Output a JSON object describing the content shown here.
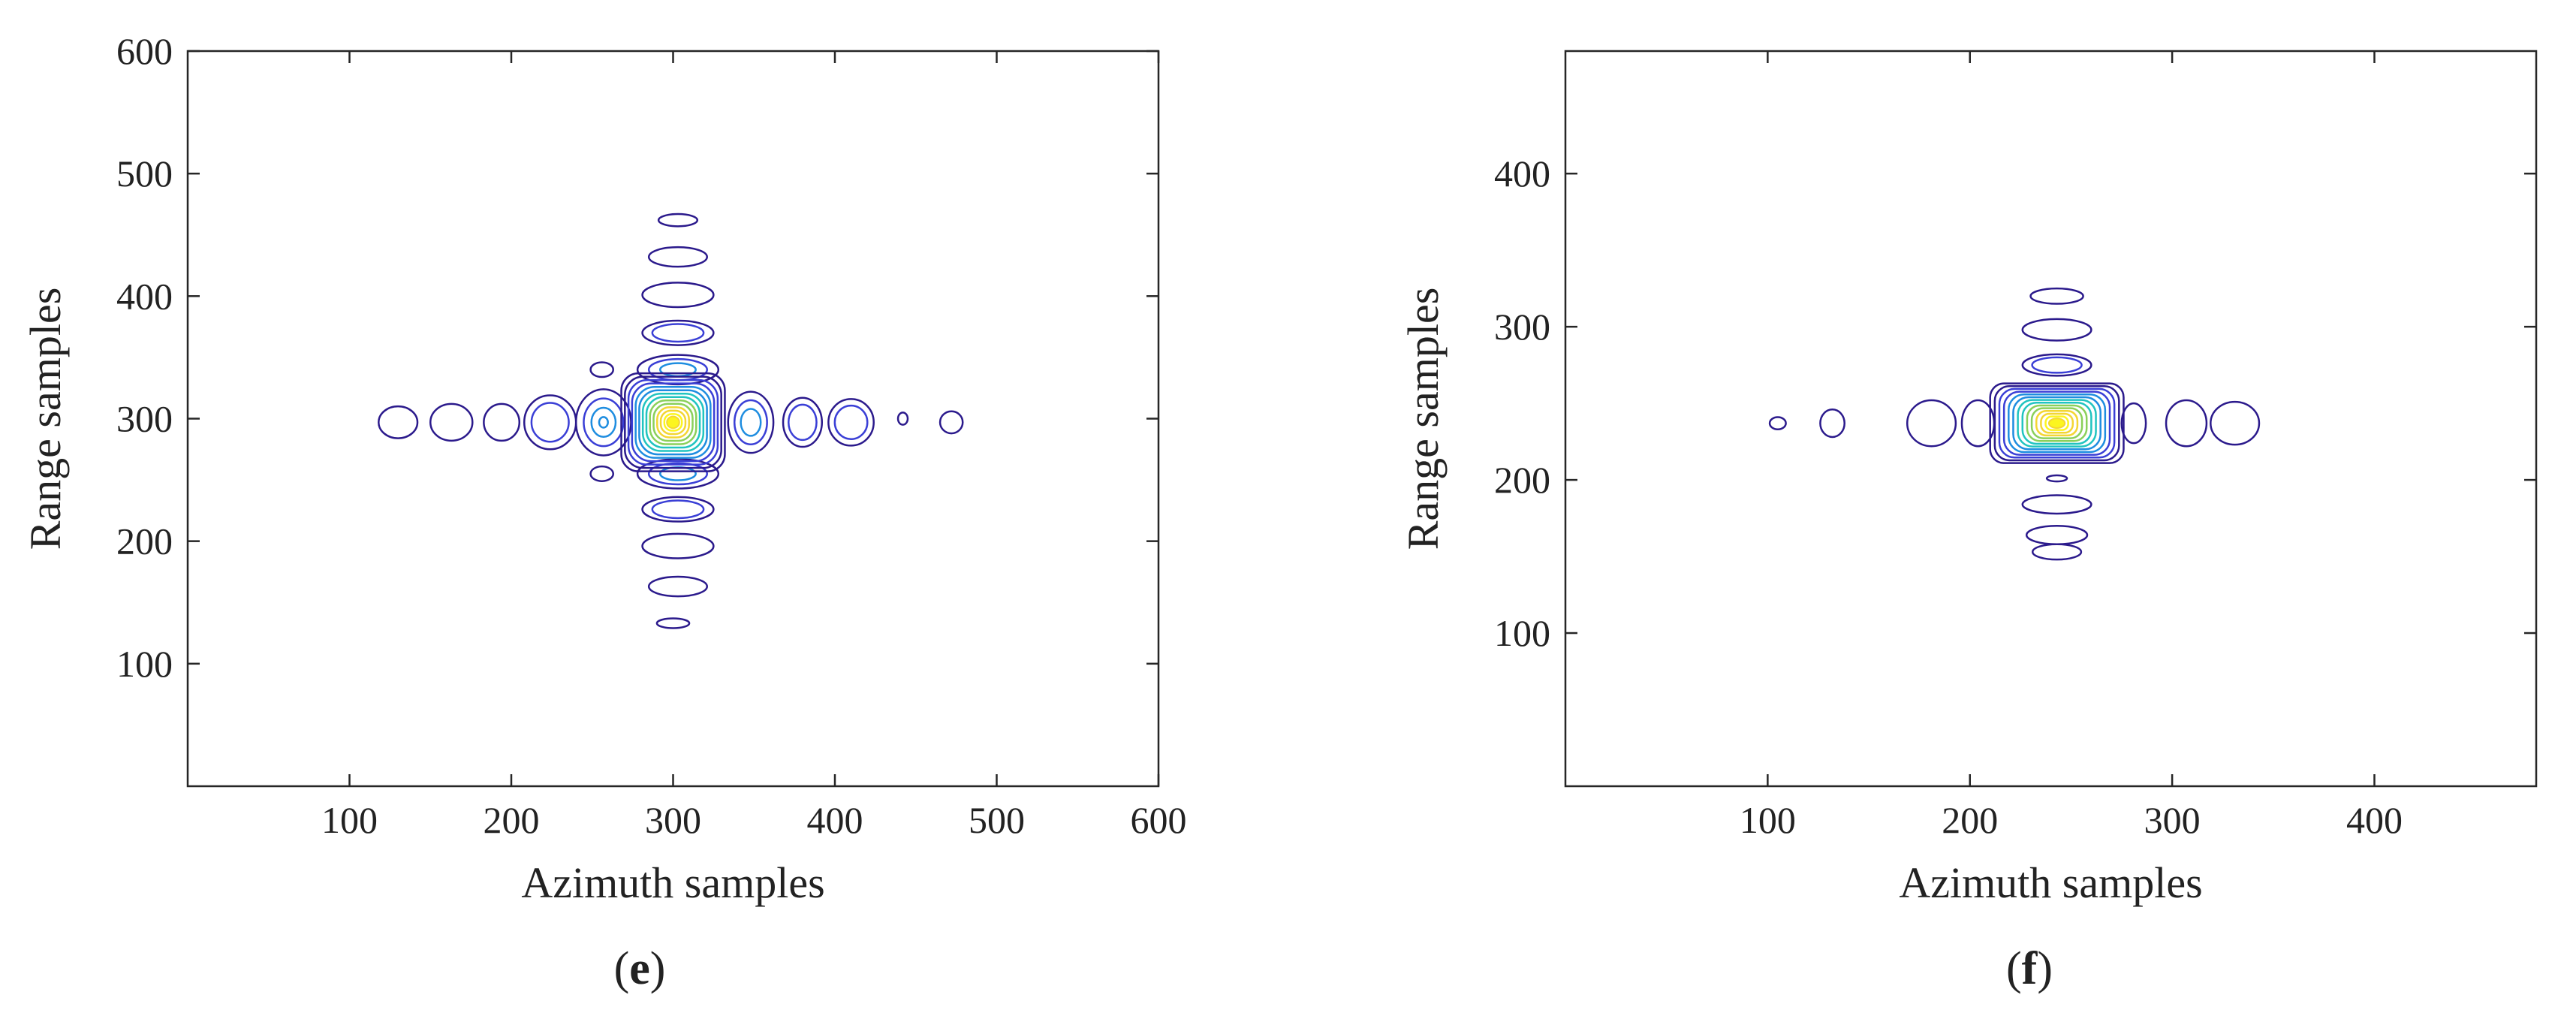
{
  "figure": {
    "panels": [
      {
        "letter": "e",
        "open": "(",
        "close": ")"
      },
      {
        "letter": "f",
        "open": "(",
        "close": ")"
      }
    ]
  },
  "chart_data": [
    {
      "type": "contour",
      "panel": "e",
      "xlabel": "Azimuth samples",
      "ylabel": "Range samples",
      "xlim": [
        0,
        600
      ],
      "ylim": [
        0,
        600
      ],
      "xticks": [
        100,
        200,
        300,
        400,
        500,
        600
      ],
      "yticks": [
        100,
        200,
        300,
        400,
        500,
        600
      ],
      "grid": false,
      "colormap": [
        "#2b1a8c",
        "#3a3fd6",
        "#1e8de0",
        "#21c4c0",
        "#8ad05a",
        "#f3d633",
        "#fcf51f"
      ],
      "center": [
        300,
        297
      ],
      "main_lobe": {
        "levels": 14,
        "rx": 32,
        "ry": 40
      },
      "sidelobes": [
        {
          "x": 130,
          "y": 297,
          "rx": 12,
          "ry": 13,
          "levels": 1
        },
        {
          "x": 163,
          "y": 297,
          "rx": 13,
          "ry": 15,
          "levels": 1
        },
        {
          "x": 194,
          "y": 297,
          "rx": 11,
          "ry": 15,
          "levels": 1
        },
        {
          "x": 224,
          "y": 297,
          "rx": 16,
          "ry": 22,
          "levels": 2
        },
        {
          "x": 257,
          "y": 297,
          "rx": 17,
          "ry": 27,
          "levels": 4
        },
        {
          "x": 348,
          "y": 297,
          "rx": 14,
          "ry": 25,
          "levels": 3
        },
        {
          "x": 380,
          "y": 297,
          "rx": 12,
          "ry": 20,
          "levels": 2
        },
        {
          "x": 410,
          "y": 297,
          "rx": 14,
          "ry": 19,
          "levels": 2
        },
        {
          "x": 442,
          "y": 300,
          "rx": 3,
          "ry": 5,
          "levels": 1
        },
        {
          "x": 472,
          "y": 297,
          "rx": 7,
          "ry": 9,
          "levels": 1
        },
        {
          "x": 256,
          "y": 340,
          "rx": 7,
          "ry": 6,
          "levels": 1
        },
        {
          "x": 256,
          "y": 255,
          "rx": 7,
          "ry": 6,
          "levels": 1
        },
        {
          "x": 303,
          "y": 462,
          "rx": 12,
          "ry": 5,
          "levels": 1
        },
        {
          "x": 303,
          "y": 432,
          "rx": 18,
          "ry": 8,
          "levels": 1
        },
        {
          "x": 303,
          "y": 401,
          "rx": 22,
          "ry": 10,
          "levels": 1
        },
        {
          "x": 303,
          "y": 370,
          "rx": 22,
          "ry": 10,
          "levels": 2
        },
        {
          "x": 303,
          "y": 340,
          "rx": 25,
          "ry": 12,
          "levels": 3
        },
        {
          "x": 303,
          "y": 255,
          "rx": 25,
          "ry": 12,
          "levels": 3
        },
        {
          "x": 303,
          "y": 226,
          "rx": 22,
          "ry": 10,
          "levels": 2
        },
        {
          "x": 303,
          "y": 196,
          "rx": 22,
          "ry": 10,
          "levels": 1
        },
        {
          "x": 303,
          "y": 163,
          "rx": 18,
          "ry": 8,
          "levels": 1
        },
        {
          "x": 300,
          "y": 133,
          "rx": 10,
          "ry": 4,
          "levels": 1
        }
      ]
    },
    {
      "type": "contour",
      "panel": "f",
      "xlabel": "Azimuth samples",
      "ylabel": "Range samples",
      "xlim": [
        0,
        480
      ],
      "ylim": [
        0,
        480
      ],
      "xticks": [
        100,
        200,
        300,
        400
      ],
      "yticks": [
        100,
        200,
        300,
        400
      ],
      "grid": false,
      "colormap": [
        "#2b1a8c",
        "#3a3fd6",
        "#1e8de0",
        "#21c4c0",
        "#8ad05a",
        "#f3d633",
        "#fcf51f"
      ],
      "center": [
        243,
        237
      ],
      "main_lobe": {
        "levels": 14,
        "rx": 33,
        "ry": 26
      },
      "sidelobes": [
        {
          "x": 105,
          "y": 237,
          "rx": 4,
          "ry": 4,
          "levels": 1
        },
        {
          "x": 132,
          "y": 237,
          "rx": 6,
          "ry": 9,
          "levels": 1
        },
        {
          "x": 181,
          "y": 237,
          "rx": 12,
          "ry": 15,
          "levels": 1
        },
        {
          "x": 204,
          "y": 237,
          "rx": 8,
          "ry": 15,
          "levels": 1
        },
        {
          "x": 281,
          "y": 237,
          "rx": 6,
          "ry": 13,
          "levels": 1
        },
        {
          "x": 307,
          "y": 237,
          "rx": 10,
          "ry": 15,
          "levels": 1
        },
        {
          "x": 331,
          "y": 237,
          "rx": 12,
          "ry": 14,
          "levels": 1
        },
        {
          "x": 243,
          "y": 320,
          "rx": 13,
          "ry": 5,
          "levels": 1
        },
        {
          "x": 243,
          "y": 298,
          "rx": 17,
          "ry": 7,
          "levels": 1
        },
        {
          "x": 243,
          "y": 275,
          "rx": 17,
          "ry": 7,
          "levels": 2
        },
        {
          "x": 243,
          "y": 201,
          "rx": 5,
          "ry": 2,
          "levels": 1
        },
        {
          "x": 243,
          "y": 184,
          "rx": 17,
          "ry": 6,
          "levels": 1
        },
        {
          "x": 243,
          "y": 164,
          "rx": 15,
          "ry": 6,
          "levels": 1
        },
        {
          "x": 243,
          "y": 153,
          "rx": 12,
          "ry": 5,
          "levels": 1
        }
      ]
    }
  ]
}
